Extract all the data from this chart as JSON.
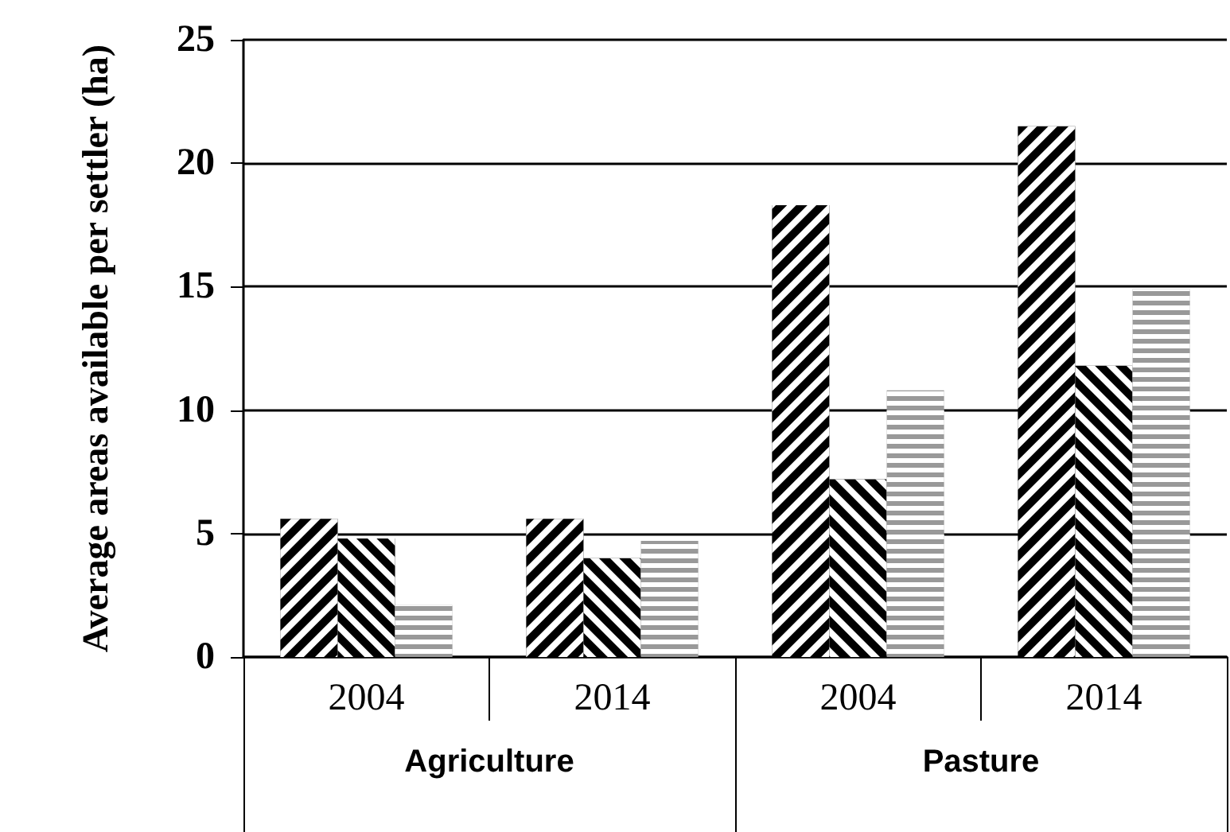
{
  "chart_data": {
    "type": "bar",
    "ylabel": "Average areas available per settler (ha)",
    "categories": [
      "2004",
      "2014",
      "2004",
      "2014"
    ],
    "annotations": [
      "Agriculture",
      "Pasture"
    ],
    "series": [
      {
        "color": "#000000",
        "values": [
          5.6,
          5.6,
          18.3,
          21.5
        ]
      },
      {
        "color": "#000000",
        "values": [
          4.8,
          4.0,
          7.2,
          11.8
        ]
      },
      {
        "color": "#999999",
        "values": [
          2.1,
          4.7,
          10.8,
          14.9
        ]
      }
    ],
    "ylim": [
      0,
      25
    ],
    "yticks": [
      0,
      5,
      10,
      15,
      20,
      25
    ],
    "grid": "y"
  }
}
